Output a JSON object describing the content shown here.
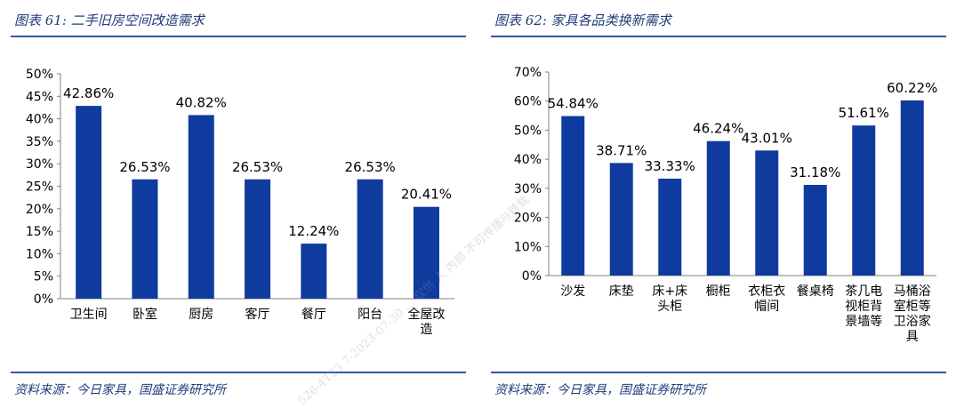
{
  "watermark": "526-4T23 7-2023-07-30 …   仅供 人 内部 不可传播与转载",
  "colors": {
    "bar": "#0f3b9e",
    "title": "#1f3b7a",
    "rule": "#2a5aa8",
    "axis": "#808080"
  },
  "panels": [
    {
      "title": "图表 61:  二手旧房空间改造需求",
      "source": "资料来源：今日家具，国盛证券研究所"
    },
    {
      "title": "图表 62:  家具各品类换新需求",
      "source": "资料来源：今日家具，国盛证券研究所"
    }
  ],
  "chart_data": [
    {
      "type": "bar",
      "categories": [
        "卫生间",
        "卧室",
        "厨房",
        "客厅",
        "餐厅",
        "阳台",
        "全屋改造"
      ],
      "category_lines": [
        [
          "卫生间"
        ],
        [
          "卧室"
        ],
        [
          "厨房"
        ],
        [
          "客厅"
        ],
        [
          "餐厅"
        ],
        [
          "阳台"
        ],
        [
          "全屋改",
          "造"
        ]
      ],
      "values": [
        42.86,
        26.53,
        40.82,
        26.53,
        12.24,
        26.53,
        20.41
      ],
      "data_labels": [
        "42.86%",
        "26.53%",
        "40.82%",
        "26.53%",
        "12.24%",
        "26.53%",
        "20.41%"
      ],
      "ylim": [
        0,
        50
      ],
      "yticks": [
        0,
        5,
        10,
        15,
        20,
        25,
        30,
        35,
        40,
        45,
        50
      ],
      "ytick_labels": [
        "0%",
        "5%",
        "10%",
        "15%",
        "20%",
        "25%",
        "30%",
        "35%",
        "40%",
        "45%",
        "50%"
      ],
      "grid": false
    },
    {
      "type": "bar",
      "categories": [
        "沙发",
        "床垫",
        "床+床头柜",
        "橱柜",
        "衣柜衣帽间",
        "餐桌椅",
        "茶几电视柜背景墙等",
        "马桶浴室柜等卫浴家具"
      ],
      "category_lines": [
        [
          "沙发"
        ],
        [
          "床垫"
        ],
        [
          "床+床",
          "头柜"
        ],
        [
          "橱柜"
        ],
        [
          "衣柜衣",
          "帽间"
        ],
        [
          "餐桌椅"
        ],
        [
          "茶几电",
          "视柜背",
          "景墙等"
        ],
        [
          "马桶浴",
          "室柜等",
          "卫浴家",
          "具"
        ]
      ],
      "values": [
        54.84,
        38.71,
        33.33,
        46.24,
        43.01,
        31.18,
        51.61,
        60.22
      ],
      "data_labels": [
        "54.84%",
        "38.71%",
        "33.33%",
        "46.24%",
        "43.01%",
        "31.18%",
        "51.61%",
        "60.22%"
      ],
      "ylim": [
        0,
        70
      ],
      "yticks": [
        0,
        10,
        20,
        30,
        40,
        50,
        60,
        70
      ],
      "ytick_labels": [
        "0%",
        "10%",
        "20%",
        "30%",
        "40%",
        "50%",
        "60%",
        "70%"
      ],
      "grid": false
    }
  ]
}
